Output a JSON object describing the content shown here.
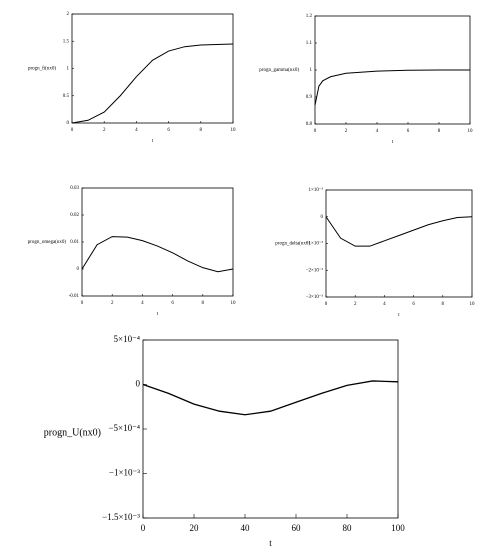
{
  "chart_data": [
    {
      "type": "line",
      "y_label": "progn_fi(nx0)",
      "x_label": "t",
      "x": [
        0,
        1,
        2,
        3,
        4,
        5,
        6,
        7,
        8,
        9,
        10
      ],
      "series": [
        {
          "color": "#000000",
          "values": [
            0,
            0.05,
            0.2,
            0.5,
            0.85,
            1.15,
            1.32,
            1.4,
            1.43,
            1.44,
            1.45
          ]
        }
      ],
      "xlim": [
        0,
        10
      ],
      "xticks": [
        0,
        2,
        4,
        6,
        8,
        10
      ],
      "ylim": [
        0,
        2
      ],
      "yticks": [
        0,
        0.5,
        1,
        1.5,
        2
      ]
    },
    {
      "type": "line",
      "y_label": "progn_gamma(nx0)",
      "x_label": "t",
      "x": [
        0,
        0.25,
        0.5,
        1,
        2,
        4,
        6,
        8,
        10
      ],
      "series": [
        {
          "color": "#000000",
          "values": [
            0.87,
            0.94,
            0.96,
            0.975,
            0.988,
            0.996,
            0.999,
            1,
            1
          ]
        }
      ],
      "xlim": [
        0,
        10
      ],
      "xticks": [
        0,
        2,
        4,
        6,
        8,
        10
      ],
      "ylim": [
        0.8,
        1.2
      ],
      "yticks": [
        0.8,
        0.9,
        1,
        1.1,
        1.2
      ]
    },
    {
      "type": "line",
      "y_label": "progn_omega(nx0)",
      "x_label": "t",
      "x": [
        0,
        1,
        2,
        3,
        4,
        5,
        6,
        7,
        8,
        9,
        10
      ],
      "series": [
        {
          "color": "#000000",
          "values": [
            0,
            0.009,
            0.012,
            0.0118,
            0.0105,
            0.0085,
            0.006,
            0.003,
            0.0005,
            -0.001,
            0
          ]
        }
      ],
      "xlim": [
        0,
        10
      ],
      "xticks": [
        0,
        2,
        4,
        6,
        8,
        10
      ],
      "ylim": [
        -0.01,
        0.03
      ],
      "yticks": [
        -0.01,
        0,
        0.01,
        0.02,
        0.03
      ]
    },
    {
      "type": "line",
      "y_label": "progn_delta(nx0)",
      "x_label": "t",
      "x": [
        0,
        1,
        2,
        3,
        4,
        5,
        6,
        7,
        8,
        9,
        10
      ],
      "series": [
        {
          "color": "#000000",
          "values": [
            0,
            -0.0008,
            -0.0011,
            -0.0011,
            -0.0009,
            -0.0007,
            -0.0005,
            -0.0003,
            -0.00015,
            -3e-05,
            0
          ]
        }
      ],
      "xlim": [
        0,
        10
      ],
      "xticks": [
        0,
        2,
        4,
        6,
        8,
        10
      ],
      "ylim": [
        -0.003,
        0.001
      ],
      "yticks": [
        {
          "value": -0.003,
          "label": "−3×10⁻³"
        },
        {
          "value": -0.002,
          "label": "−2×10⁻³"
        },
        {
          "value": -0.001,
          "label": "−1×10⁻³"
        },
        0,
        {
          "value": 0.001,
          "label": "1×10⁻³"
        }
      ]
    },
    {
      "type": "line",
      "y_label": "progn_U(nx0)",
      "x_label": "t",
      "x": [
        0,
        10,
        20,
        30,
        40,
        50,
        60,
        70,
        80,
        90,
        100
      ],
      "series": [
        {
          "color": "#000000",
          "values": [
            0,
            -0.0001,
            -0.00022,
            -0.0003,
            -0.00034,
            -0.0003,
            -0.0002,
            -0.0001,
            -1e-05,
            4e-05,
            3e-05
          ]
        }
      ],
      "xlim": [
        0,
        100
      ],
      "xticks": [
        0,
        20,
        40,
        60,
        80,
        100
      ],
      "ylim": [
        -0.0015,
        0.0005
      ],
      "yticks": [
        {
          "value": -0.0015,
          "label": "−1.5×10⁻³"
        },
        {
          "value": -0.001,
          "label": "−1×10⁻³"
        },
        {
          "value": -0.0005,
          "label": "−5×10⁻⁴"
        },
        0,
        {
          "value": 0.0005,
          "label": "5×10⁻⁴"
        }
      ]
    }
  ]
}
